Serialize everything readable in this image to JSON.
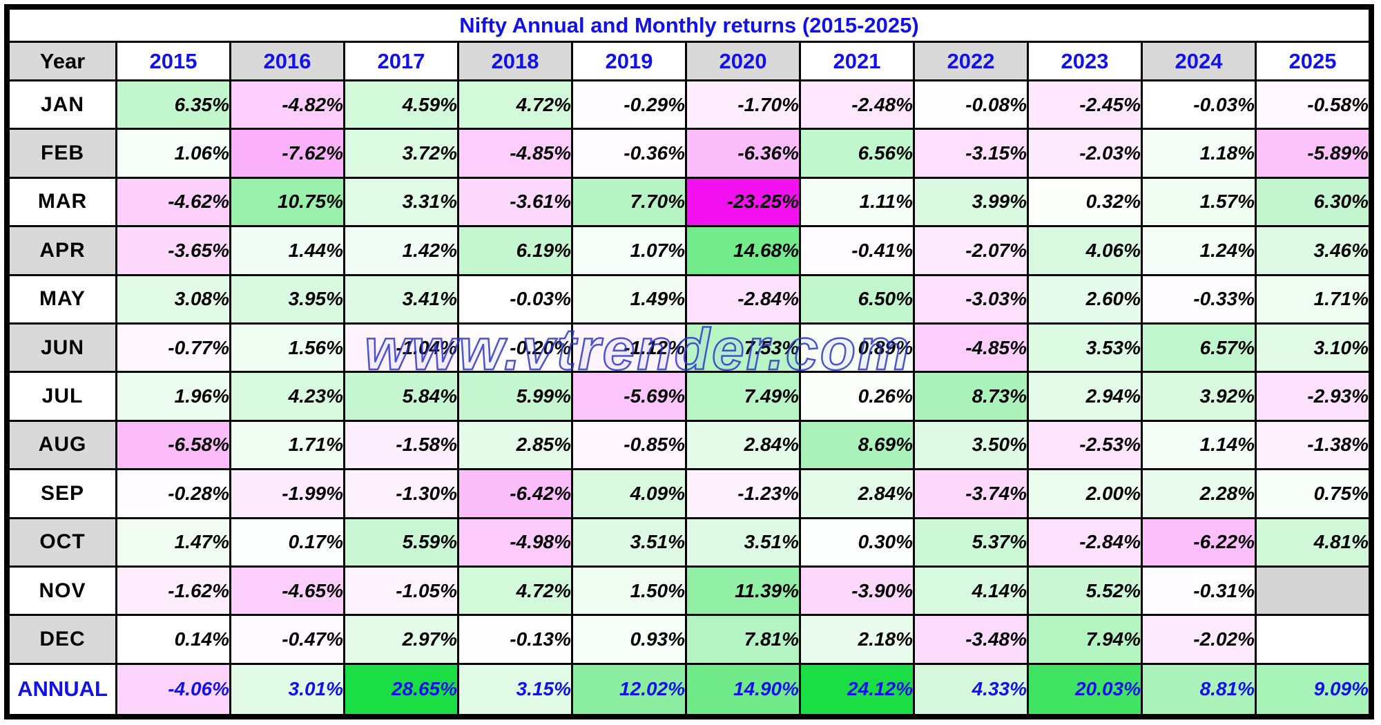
{
  "watermark": "www.vtrender.com",
  "value_suffix": "%",
  "colors": {
    "header_gray": "#d9d9d9",
    "white": "#ffffff",
    "title_blue": "#1212e8",
    "annual_blue": "#1212e8",
    "border_black": "#000000",
    "positive_full": "#1ade43",
    "negative_full": "#f411ef",
    "empty_nov_cell": "#d5d5d5",
    "empty_dec_cell": "#ffffff"
  },
  "scale": {
    "green_full_at": 24.0,
    "pink_full_at": 23.25
  },
  "chart_data": {
    "type": "heatmap",
    "title": "Nifty Annual and Monthly returns (2015-2025)",
    "unit": "percent",
    "columns": [
      "Year",
      "2015",
      "2016",
      "2017",
      "2018",
      "2019",
      "2020",
      "2021",
      "2022",
      "2023",
      "2024",
      "2025"
    ],
    "rows": [
      {
        "label": "JAN",
        "values": [
          6.35,
          -4.82,
          4.59,
          4.72,
          -0.29,
          -1.7,
          -2.48,
          -0.08,
          -2.45,
          -0.03,
          -0.58
        ]
      },
      {
        "label": "FEB",
        "values": [
          1.06,
          -7.62,
          3.72,
          -4.85,
          -0.36,
          -6.36,
          6.56,
          -3.15,
          -2.03,
          1.18,
          -5.89
        ]
      },
      {
        "label": "MAR",
        "values": [
          -4.62,
          10.75,
          3.31,
          -3.61,
          7.7,
          -23.25,
          1.11,
          3.99,
          0.32,
          1.57,
          6.3
        ]
      },
      {
        "label": "APR",
        "values": [
          -3.65,
          1.44,
          1.42,
          6.19,
          1.07,
          14.68,
          -0.41,
          -2.07,
          4.06,
          1.24,
          3.46
        ]
      },
      {
        "label": "MAY",
        "values": [
          3.08,
          3.95,
          3.41,
          -0.03,
          1.49,
          -2.84,
          6.5,
          -3.03,
          2.6,
          -0.33,
          1.71
        ]
      },
      {
        "label": "JUN",
        "values": [
          -0.77,
          1.56,
          -1.04,
          -0.2,
          -1.12,
          7.53,
          0.89,
          -4.85,
          3.53,
          6.57,
          3.1
        ]
      },
      {
        "label": "JUL",
        "values": [
          1.96,
          4.23,
          5.84,
          5.99,
          -5.69,
          7.49,
          0.26,
          8.73,
          2.94,
          3.92,
          -2.93
        ]
      },
      {
        "label": "AUG",
        "values": [
          -6.58,
          1.71,
          -1.58,
          2.85,
          -0.85,
          2.84,
          8.69,
          3.5,
          -2.53,
          1.14,
          -1.38
        ]
      },
      {
        "label": "SEP",
        "values": [
          -0.28,
          -1.99,
          -1.3,
          -6.42,
          4.09,
          -1.23,
          2.84,
          -3.74,
          2.0,
          2.28,
          0.75
        ]
      },
      {
        "label": "OCT",
        "values": [
          1.47,
          0.17,
          5.59,
          -4.98,
          3.51,
          3.51,
          0.3,
          5.37,
          -2.84,
          -6.22,
          4.81
        ]
      },
      {
        "label": "NOV",
        "values": [
          -1.62,
          -4.65,
          -1.05,
          4.72,
          1.5,
          11.39,
          -3.9,
          4.14,
          5.52,
          -0.31,
          null
        ]
      },
      {
        "label": "DEC",
        "values": [
          0.14,
          -0.47,
          2.97,
          -0.13,
          0.93,
          7.81,
          2.18,
          -3.48,
          7.94,
          -2.02,
          null
        ]
      }
    ],
    "annual_row": {
      "label": "ANNUAL",
      "values": [
        -4.06,
        3.01,
        28.65,
        3.15,
        12.02,
        14.9,
        24.12,
        4.33,
        20.03,
        8.81,
        9.09
      ]
    },
    "legend": "green = positive monthly return, magenta = negative monthly return, intensity scales with magnitude"
  }
}
